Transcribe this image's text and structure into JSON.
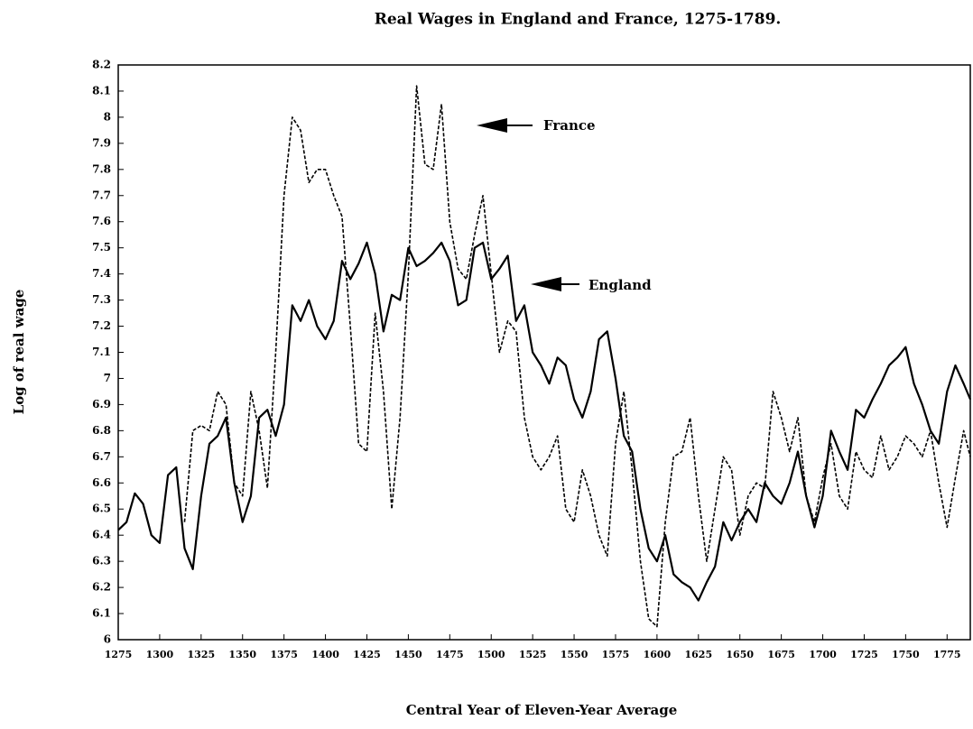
{
  "chart_data": {
    "type": "line",
    "title": "Real Wages in England and France, 1275-1789.",
    "x_label": "Central Year of Eleven-Year Average",
    "y_label": "Log of real wage",
    "annotations": [
      "France",
      "England"
    ],
    "x": [
      1275,
      1280,
      1285,
      1290,
      1295,
      1300,
      1305,
      1310,
      1315,
      1320,
      1325,
      1330,
      1335,
      1340,
      1345,
      1350,
      1355,
      1360,
      1365,
      1370,
      1375,
      1380,
      1385,
      1390,
      1395,
      1400,
      1405,
      1410,
      1415,
      1420,
      1425,
      1430,
      1435,
      1440,
      1445,
      1450,
      1455,
      1460,
      1465,
      1470,
      1475,
      1480,
      1485,
      1490,
      1495,
      1500,
      1505,
      1510,
      1515,
      1520,
      1525,
      1530,
      1535,
      1540,
      1545,
      1550,
      1555,
      1560,
      1565,
      1570,
      1575,
      1580,
      1585,
      1590,
      1595,
      1600,
      1605,
      1610,
      1615,
      1620,
      1625,
      1630,
      1635,
      1640,
      1645,
      1650,
      1655,
      1660,
      1665,
      1670,
      1675,
      1680,
      1685,
      1690,
      1695,
      1700,
      1705,
      1710,
      1715,
      1720,
      1725,
      1730,
      1735,
      1740,
      1745,
      1750,
      1755,
      1760,
      1765,
      1770,
      1775,
      1780,
      1785,
      1789
    ],
    "series": [
      {
        "name": "England",
        "color": "#000000",
        "style": "solid",
        "values": [
          6.42,
          6.45,
          6.56,
          6.52,
          6.4,
          6.37,
          6.63,
          6.66,
          6.35,
          6.27,
          6.55,
          6.75,
          6.78,
          6.85,
          6.6,
          6.45,
          6.55,
          6.85,
          6.88,
          6.78,
          6.9,
          7.28,
          7.22,
          7.3,
          7.2,
          7.15,
          7.22,
          7.45,
          7.38,
          7.44,
          7.52,
          7.4,
          7.18,
          7.32,
          7.3,
          7.5,
          7.43,
          7.45,
          7.48,
          7.52,
          7.45,
          7.28,
          7.3,
          7.5,
          7.52,
          7.38,
          7.42,
          7.47,
          7.22,
          7.28,
          7.1,
          7.05,
          6.98,
          7.08,
          7.05,
          6.92,
          6.85,
          6.95,
          7.15,
          7.18,
          7.0,
          6.78,
          6.72,
          6.5,
          6.35,
          6.3,
          6.4,
          6.25,
          6.22,
          6.2,
          6.15,
          6.22,
          6.28,
          6.45,
          6.38,
          6.45,
          6.5,
          6.45,
          6.6,
          6.55,
          6.52,
          6.6,
          6.72,
          6.55,
          6.43,
          6.55,
          6.8,
          6.72,
          6.65,
          6.88,
          6.85,
          6.92,
          6.98,
          7.05,
          7.08,
          7.12,
          6.98,
          6.9,
          6.8,
          6.75,
          6.95,
          7.05,
          6.98,
          6.92
        ]
      },
      {
        "name": "France",
        "color": "#000000",
        "style": "dashed",
        "values": [
          null,
          null,
          null,
          null,
          null,
          null,
          null,
          null,
          6.45,
          6.8,
          6.82,
          6.8,
          6.95,
          6.9,
          6.6,
          6.55,
          6.95,
          6.8,
          6.58,
          7.1,
          7.7,
          8.0,
          7.95,
          7.75,
          7.8,
          7.8,
          7.7,
          7.62,
          7.2,
          6.75,
          6.72,
          7.25,
          6.95,
          6.5,
          6.85,
          7.4,
          8.12,
          7.82,
          7.8,
          8.05,
          7.6,
          7.42,
          7.38,
          7.55,
          7.7,
          7.4,
          7.1,
          7.22,
          7.18,
          6.85,
          6.7,
          6.65,
          6.7,
          6.78,
          6.5,
          6.45,
          6.65,
          6.55,
          6.4,
          6.32,
          6.75,
          6.95,
          6.65,
          6.3,
          6.08,
          6.05,
          6.45,
          6.7,
          6.72,
          6.85,
          6.55,
          6.3,
          6.5,
          6.7,
          6.65,
          6.4,
          6.55,
          6.6,
          6.58,
          6.95,
          6.85,
          6.72,
          6.85,
          6.55,
          6.45,
          6.62,
          6.75,
          6.55,
          6.5,
          6.72,
          6.65,
          6.62,
          6.78,
          6.65,
          6.7,
          6.78,
          6.75,
          6.7,
          6.8,
          6.6,
          6.43,
          6.62,
          6.8,
          6.7
        ]
      }
    ],
    "xlim": [
      1275,
      1789
    ],
    "xticks": [
      1275,
      1300,
      1325,
      1350,
      1375,
      1400,
      1425,
      1450,
      1475,
      1500,
      1525,
      1550,
      1575,
      1600,
      1625,
      1650,
      1675,
      1700,
      1725,
      1750,
      1775
    ],
    "ylim": [
      6,
      8.2
    ],
    "yticks": [
      6,
      6.1,
      6.2,
      6.3,
      6.4,
      6.5,
      6.6,
      6.7,
      6.8,
      6.9,
      7,
      7.1,
      7.2,
      7.3,
      7.4,
      7.5,
      7.6,
      7.7,
      7.8,
      7.9,
      8,
      8.1,
      8.2
    ],
    "grid": false
  }
}
